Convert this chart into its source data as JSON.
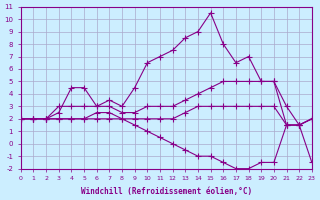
{
  "xlabel": "Windchill (Refroidissement éolien,°C)",
  "background_color": "#cceeff",
  "grid_color": "#aaaacc",
  "line_color": "#880088",
  "xlim": [
    0,
    23
  ],
  "ylim": [
    -2,
    11
  ],
  "xticks": [
    0,
    1,
    2,
    3,
    4,
    5,
    6,
    7,
    8,
    9,
    10,
    11,
    12,
    13,
    14,
    15,
    16,
    17,
    18,
    19,
    20,
    21,
    22,
    23
  ],
  "yticks": [
    -2,
    -1,
    0,
    1,
    2,
    3,
    4,
    5,
    6,
    7,
    8,
    9,
    10,
    11
  ],
  "series1_x": [
    0,
    1,
    2,
    3,
    4,
    5,
    6,
    7,
    8,
    9,
    10,
    11,
    12,
    13,
    14,
    15,
    16,
    17,
    18,
    19,
    20,
    21,
    22,
    23
  ],
  "series1_y": [
    2,
    2,
    2,
    2.5,
    4.5,
    4.5,
    3,
    3.5,
    3,
    4.5,
    6.5,
    7,
    7.5,
    8.5,
    9,
    10.5,
    8,
    6.5,
    7,
    5,
    5,
    1.5,
    1.5,
    2
  ],
  "series2_x": [
    0,
    1,
    2,
    3,
    4,
    5,
    6,
    7,
    8,
    9,
    10,
    11,
    12,
    13,
    14,
    15,
    16,
    17,
    18,
    19,
    20,
    21,
    22,
    23
  ],
  "series2_y": [
    2,
    2,
    2,
    3,
    3,
    3,
    3,
    3,
    2.5,
    2.5,
    3,
    3,
    3,
    3.5,
    4,
    4.5,
    5,
    5,
    5,
    5,
    5,
    3,
    1.5,
    2
  ],
  "series3_x": [
    0,
    1,
    2,
    3,
    4,
    5,
    6,
    7,
    8,
    9,
    10,
    11,
    12,
    13,
    14,
    15,
    16,
    17,
    18,
    19,
    20,
    21,
    22,
    23
  ],
  "series3_y": [
    2,
    2,
    2,
    2,
    2,
    2,
    2.5,
    2.5,
    2,
    2,
    2,
    2,
    2,
    2.5,
    3,
    3,
    3,
    3,
    3,
    3,
    3,
    1.5,
    1.5,
    2
  ],
  "series4_x": [
    0,
    1,
    2,
    3,
    4,
    5,
    6,
    7,
    8,
    9,
    10,
    11,
    12,
    13,
    14,
    15,
    16,
    17,
    18,
    19,
    20,
    21,
    22,
    23
  ],
  "series4_y": [
    2,
    2,
    2,
    2,
    2,
    2,
    2,
    2,
    2,
    1.5,
    1,
    0.5,
    0,
    -0.5,
    -1,
    -1,
    -1.5,
    -2,
    -2,
    -1.5,
    -1.5,
    1.5,
    1.5,
    -1.5
  ]
}
